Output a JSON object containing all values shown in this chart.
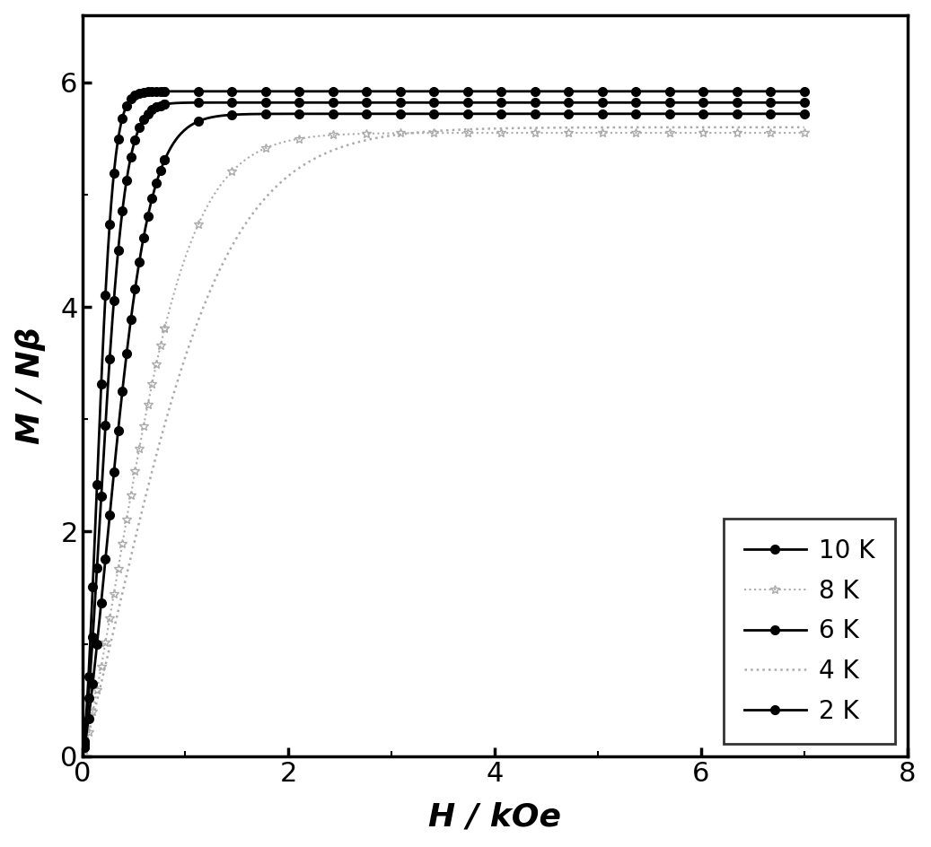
{
  "series": [
    {
      "label": "2 K",
      "T": 2,
      "color": "#000000",
      "linestyle": "-",
      "marker": "o",
      "markersize": 7,
      "markerfacecolor": "#000000",
      "markeredgecolor": "#000000",
      "linewidth": 2.0,
      "zorder": 5,
      "M_sat": 5.92,
      "alpha": 0.55
    },
    {
      "label": "4 K",
      "T": 4,
      "color": "#aaaaaa",
      "linestyle": ":",
      "marker": "None",
      "markersize": 0,
      "markerfacecolor": "#aaaaaa",
      "markeredgecolor": "#aaaaaa",
      "linewidth": 1.8,
      "zorder": 2,
      "M_sat": 5.6,
      "alpha": 0.38
    },
    {
      "label": "6 K",
      "T": 6,
      "color": "#000000",
      "linestyle": "-",
      "marker": "o",
      "markersize": 7,
      "markerfacecolor": "#000000",
      "markeredgecolor": "#000000",
      "linewidth": 2.0,
      "zorder": 4,
      "M_sat": 5.72,
      "alpha": 0.42
    },
    {
      "label": "8 K",
      "T": 8,
      "color": "#aaaaaa",
      "linestyle": ":",
      "marker": "*",
      "markersize": 7,
      "markerfacecolor": "none",
      "markeredgecolor": "#aaaaaa",
      "linewidth": 1.5,
      "zorder": 3,
      "M_sat": 5.55,
      "alpha": 0.32
    },
    {
      "label": "10 K",
      "T": 10,
      "color": "#000000",
      "linestyle": "-",
      "marker": "o",
      "markersize": 7,
      "markerfacecolor": "#000000",
      "markeredgecolor": "#000000",
      "linewidth": 2.0,
      "zorder": 6,
      "M_sat": 5.82,
      "alpha": 0.46
    }
  ],
  "xlim": [
    0,
    8
  ],
  "ylim": [
    0,
    6.6
  ],
  "xlabel": "H / kOe",
  "ylabel": "M / Nβ",
  "xticks": [
    0,
    2,
    4,
    6,
    8
  ],
  "yticks": [
    0,
    2,
    4,
    6
  ],
  "figsize": [
    10.37,
    9.44
  ],
  "dpi": 100,
  "background_color": "#ffffff",
  "axis_linewidth": 2.5
}
